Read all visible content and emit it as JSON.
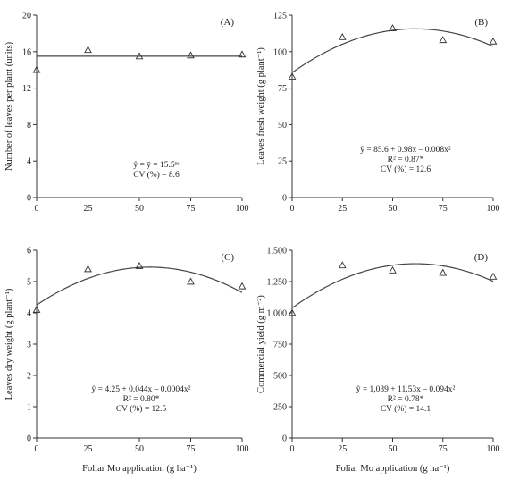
{
  "x_axis_title": "Foliar Mo application (g ha⁻¹)",
  "chart_data": [
    {
      "type": "scatter",
      "panel": "(A)",
      "ylabel": "Number of leaves per plant (units)",
      "xlabel": "",
      "x": [
        0,
        25,
        50,
        75,
        100
      ],
      "values": [
        14,
        16.2,
        15.5,
        15.6,
        15.7
      ],
      "xlim": [
        0,
        100
      ],
      "ylim": [
        0,
        20
      ],
      "xticks": [
        0,
        25,
        50,
        75,
        100
      ],
      "yticks": [
        0,
        4,
        8,
        12,
        16,
        20
      ],
      "fit": {
        "a": 15.5,
        "b": 0,
        "c": 0
      },
      "annotations": [
        "ŷ = ȳ = 15.5ⁿˢ",
        "CV (%) = 8.6"
      ]
    },
    {
      "type": "scatter",
      "panel": "(B)",
      "ylabel": "Leaves fresh weight (g plant⁻¹)",
      "xlabel": "",
      "x": [
        0,
        25,
        50,
        75,
        100
      ],
      "values": [
        83,
        110,
        116,
        108,
        107
      ],
      "xlim": [
        0,
        100
      ],
      "ylim": [
        0,
        125
      ],
      "xticks": [
        0,
        25,
        50,
        75,
        100
      ],
      "yticks": [
        0,
        25,
        50,
        75,
        100,
        125
      ],
      "fit": {
        "a": 85.6,
        "b": 0.98,
        "c": -0.008
      },
      "annotations": [
        "ŷ = 85.6 + 0.98x – 0.008x²",
        "R² = 0.87*",
        "CV (%) = 12.6"
      ]
    },
    {
      "type": "scatter",
      "panel": "(C)",
      "ylabel": "Leaves dry weight (g plant⁻¹)",
      "xlabel": "Foliar Mo application (g ha⁻¹)",
      "x": [
        0,
        25,
        50,
        75,
        100
      ],
      "values": [
        4.1,
        5.4,
        5.5,
        5.0,
        4.85
      ],
      "xlim": [
        0,
        100
      ],
      "ylim": [
        0,
        6
      ],
      "xticks": [
        0,
        25,
        50,
        75,
        100
      ],
      "yticks": [
        0,
        1,
        2,
        3,
        4,
        5,
        6
      ],
      "fit": {
        "a": 4.25,
        "b": 0.044,
        "c": -0.0004
      },
      "annotations": [
        "ŷ = 4.25 + 0.044x – 0.0004x²",
        "R² = 0.80*",
        "CV (%) = 12.5"
      ]
    },
    {
      "type": "scatter",
      "panel": "(D)",
      "ylabel": "Commercial yield (g m⁻²)",
      "xlabel": "Foliar Mo application (g ha⁻¹)",
      "x": [
        0,
        25,
        50,
        75,
        100
      ],
      "values": [
        1000,
        1380,
        1340,
        1320,
        1290
      ],
      "xlim": [
        0,
        100
      ],
      "ylim": [
        0,
        1500
      ],
      "xticks": [
        0,
        25,
        50,
        75,
        100
      ],
      "yticks": [
        0,
        250,
        500,
        750,
        1000,
        1250,
        1500
      ],
      "fit": {
        "a": 1039,
        "b": 11.53,
        "c": -0.094
      },
      "annotations": [
        "ŷ = 1,039 + 11.53x – 0.094x²",
        "R² = 0.78*",
        "CV (%) = 14.1"
      ]
    }
  ]
}
